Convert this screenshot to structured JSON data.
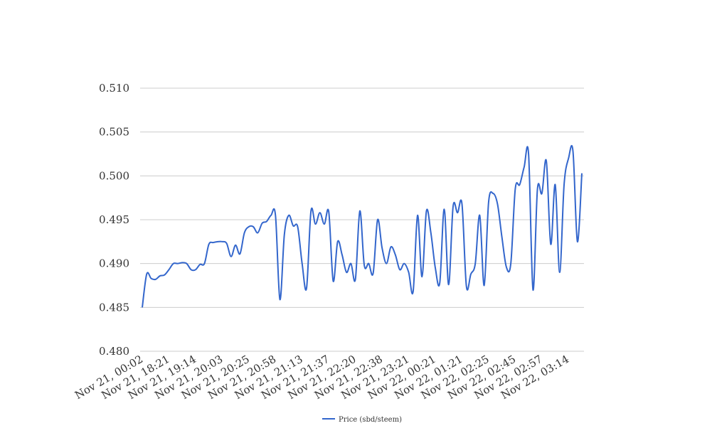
{
  "chart_data": {
    "type": "line",
    "ylim": [
      0.48,
      0.51
    ],
    "y_ticks": [
      "0.480",
      "0.485",
      "0.490",
      "0.495",
      "0.500",
      "0.505",
      "0.510"
    ],
    "x_tick_labels": [
      "Nov 21, 00:02",
      "Nov 21, 18:21",
      "Nov 21, 19:14",
      "Nov 21, 20:03",
      "Nov 21, 20:25",
      "Nov 21, 20:58",
      "Nov 21, 21:13",
      "Nov 21, 21:37",
      "Nov 21, 22:20",
      "Nov 21, 22:38",
      "Nov 21, 23:21",
      "Nov 22, 00:21",
      "Nov 22, 01:21",
      "Nov 22, 02:25",
      "Nov 22, 02:45",
      "Nov 22, 02:57",
      "Nov 22, 03:14"
    ],
    "grid": true,
    "legend_position": "bottom-center",
    "series": [
      {
        "name": "Price (sbd/steem)",
        "color": "#3366cc",
        "values": [
          0.485,
          0.4888,
          0.4883,
          0.4882,
          0.4886,
          0.4887,
          0.4893,
          0.49,
          0.49,
          0.4901,
          0.49,
          0.4893,
          0.4893,
          0.4899,
          0.49,
          0.4922,
          0.4924,
          0.4925,
          0.4925,
          0.4923,
          0.4908,
          0.4921,
          0.4911,
          0.4935,
          0.4942,
          0.4942,
          0.4935,
          0.4946,
          0.4948,
          0.4955,
          0.4955,
          0.4859,
          0.4933,
          0.4955,
          0.4943,
          0.4942,
          0.49,
          0.4872,
          0.496,
          0.4945,
          0.4958,
          0.4945,
          0.4959,
          0.488,
          0.4925,
          0.491,
          0.489,
          0.49,
          0.4882,
          0.496,
          0.4898,
          0.49,
          0.4889,
          0.495,
          0.4918,
          0.49,
          0.4919,
          0.491,
          0.4893,
          0.49,
          0.489,
          0.4868,
          0.4955,
          0.4885,
          0.496,
          0.4935,
          0.4895,
          0.4878,
          0.4962,
          0.4876,
          0.4965,
          0.4958,
          0.4968,
          0.4874,
          0.4888,
          0.49,
          0.4955,
          0.4875,
          0.497,
          0.498,
          0.4968,
          0.493,
          0.4896,
          0.49,
          0.4985,
          0.499,
          0.501,
          0.5025,
          0.487,
          0.4985,
          0.498,
          0.5017,
          0.4922,
          0.499,
          0.489,
          0.499,
          0.502,
          0.5028,
          0.4925,
          0.5003
        ]
      }
    ]
  }
}
